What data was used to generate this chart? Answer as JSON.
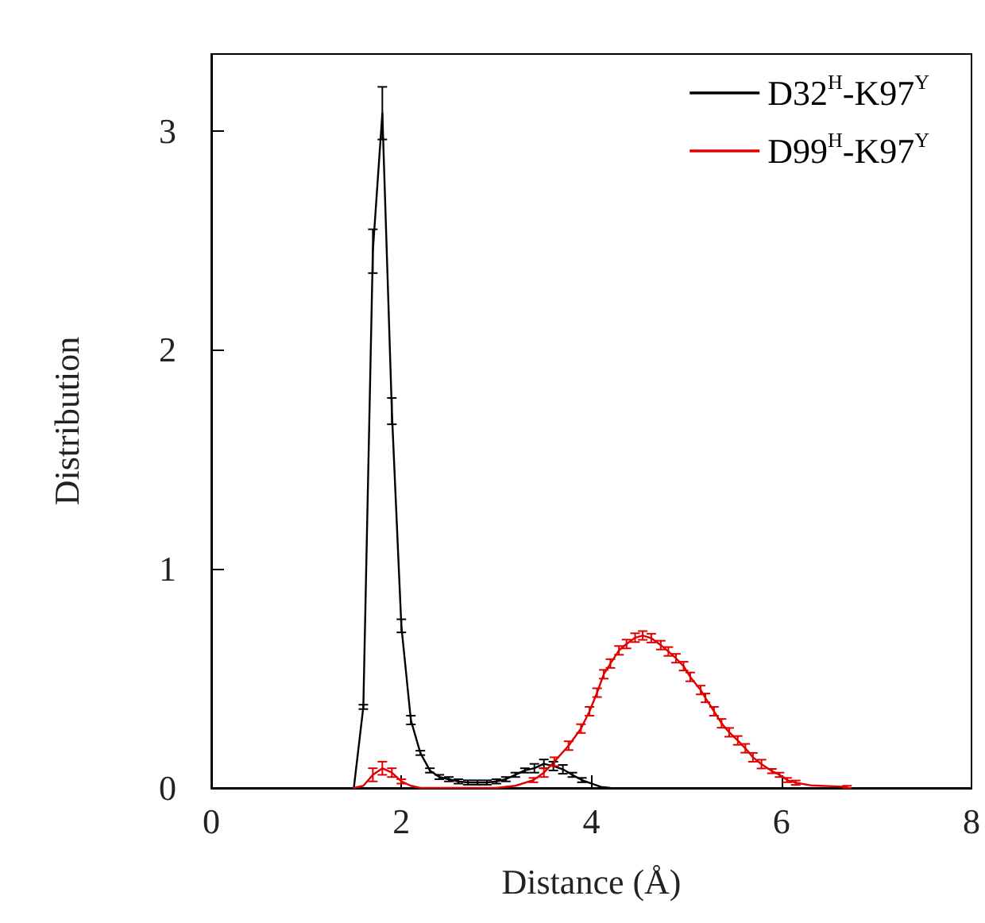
{
  "chart_data": {
    "type": "line",
    "xlabel": "Distance (Å)",
    "ylabel": "Distribution",
    "xlim": [
      0,
      8
    ],
    "xticks": [
      0,
      2,
      4,
      6,
      8
    ],
    "ylim": [
      0,
      3.35
    ],
    "yticks": [
      0,
      1,
      2,
      3
    ],
    "grid": false,
    "legend": "top right",
    "line_style": "solid",
    "series": [
      {
        "name": "D32$^{H}$-K97$^{Y}$",
        "color": "#000000",
        "x": [
          1.5,
          1.6,
          1.7,
          1.8,
          1.9,
          2.0,
          2.1,
          2.2,
          2.3,
          2.4,
          2.5,
          2.6,
          2.7,
          2.8,
          2.9,
          3.0,
          3.1,
          3.2,
          3.3,
          3.4,
          3.5,
          3.6,
          3.7,
          3.8,
          3.9,
          4.0,
          4.1,
          4.2
        ],
        "values": [
          0,
          0.37,
          2.45,
          3.08,
          1.72,
          0.74,
          0.31,
          0.16,
          0.08,
          0.05,
          0.04,
          0.03,
          0.025,
          0.025,
          0.025,
          0.03,
          0.04,
          0.06,
          0.08,
          0.09,
          0.11,
          0.1,
          0.085,
          0.06,
          0.036,
          0.02,
          0.005,
          0
        ],
        "errors": [
          null,
          0.01,
          0.1,
          0.12,
          0.06,
          0.03,
          0.02,
          0.01,
          0.01,
          0.01,
          0.01,
          0.01,
          0.01,
          0.01,
          0.01,
          0.01,
          0.01,
          0.01,
          0.01,
          0.02,
          0.02,
          0.02,
          0.02,
          0.01,
          0.01,
          null,
          null,
          null
        ]
      },
      {
        "name": "D99$^{H}$-K97$^{Y}$",
        "color": "#e00000",
        "x": [
          1.5,
          1.6,
          1.7,
          1.8,
          1.9,
          2.0,
          2.1,
          2.2,
          3.0,
          3.2,
          3.39,
          3.5,
          3.61,
          3.76,
          3.89,
          3.98,
          4.06,
          4.13,
          4.2,
          4.29,
          4.37,
          4.46,
          4.54,
          4.63,
          4.73,
          4.81,
          4.89,
          4.97,
          5.04,
          5.15,
          5.2,
          5.29,
          5.37,
          5.45,
          5.54,
          5.62,
          5.7,
          5.79,
          5.9,
          5.98,
          6.06,
          6.15,
          6.31,
          6.69
        ],
        "values": [
          0,
          0.01,
          0.06,
          0.09,
          0.07,
          0.03,
          0.01,
          0,
          0,
          0.01,
          0.036,
          0.07,
          0.12,
          0.193,
          0.271,
          0.35,
          0.435,
          0.519,
          0.568,
          0.628,
          0.657,
          0.686,
          0.696,
          0.684,
          0.652,
          0.623,
          0.592,
          0.556,
          0.507,
          0.447,
          0.411,
          0.35,
          0.295,
          0.254,
          0.217,
          0.181,
          0.14,
          0.109,
          0.077,
          0.06,
          0.036,
          0.024,
          0.012,
          0.005
        ],
        "errors": [
          null,
          null,
          0.03,
          0.03,
          0.02,
          0.01,
          null,
          null,
          null,
          null,
          0.01,
          0.02,
          0.02,
          0.02,
          0.02,
          0.02,
          0.02,
          0.02,
          0.02,
          0.02,
          0.02,
          0.02,
          0.02,
          0.02,
          0.02,
          0.02,
          0.02,
          0.02,
          0.02,
          0.02,
          0.02,
          0.02,
          0.02,
          0.02,
          0.02,
          0.02,
          0.02,
          0.02,
          0.01,
          0.01,
          0.01,
          0.01,
          null,
          0.005
        ]
      }
    ]
  }
}
